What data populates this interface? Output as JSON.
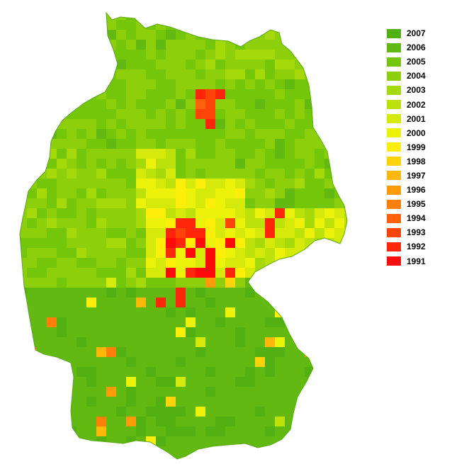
{
  "legend": [
    {
      "label": "2007",
      "color": "#52b012"
    },
    {
      "label": "2006",
      "color": "#61b912"
    },
    {
      "label": "2005",
      "color": "#73c60a"
    },
    {
      "label": "2004",
      "color": "#8ccf0a"
    },
    {
      "label": "2003",
      "color": "#a6d90a"
    },
    {
      "label": "2002",
      "color": "#bde10a"
    },
    {
      "label": "2001",
      "color": "#d5ea0a"
    },
    {
      "label": "2000",
      "color": "#ecf20a"
    },
    {
      "label": "1999",
      "color": "#ffee0a"
    },
    {
      "label": "1998",
      "color": "#ffd30a"
    },
    {
      "label": "1997",
      "color": "#ffb70a"
    },
    {
      "label": "1996",
      "color": "#ff9a0a"
    },
    {
      "label": "1995",
      "color": "#ff7f0a"
    },
    {
      "label": "1994",
      "color": "#ff620a"
    },
    {
      "label": "1993",
      "color": "#ff440a"
    },
    {
      "label": "1992",
      "color": "#ff260a"
    },
    {
      "label": "1991",
      "color": "#ff0a0a"
    }
  ]
}
